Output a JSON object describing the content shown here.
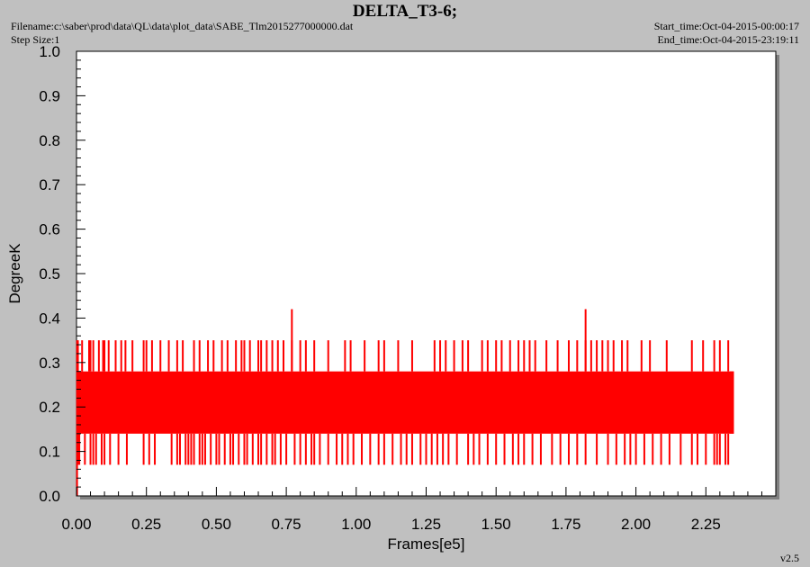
{
  "header": {
    "title": "DELTA_T3-6;",
    "filename": "Filename:c:\\saber\\prod\\data\\QL\\data\\plot_data\\SABE_Tlm2015277000000.dat",
    "step_size": "Step Size:1",
    "start_time": "Start_time:Oct-04-2015-00:00:17",
    "end_time": "End_time:Oct-04-2015-23:19:11",
    "version": "v2.5"
  },
  "colors": {
    "plot_bg": "#ffffff",
    "page_bg": "#c0c0c0",
    "series": "#ff0000"
  },
  "chart_data": {
    "type": "line",
    "title": "DELTA_T3-6;",
    "xlabel": "Frames[e5]",
    "ylabel": "DegreeK",
    "xlim": [
      0,
      2.5
    ],
    "ylim": [
      0,
      1.0
    ],
    "x_ticks": [
      "0.00",
      "0.25",
      "0.50",
      "0.75",
      "1.00",
      "1.25",
      "1.50",
      "1.75",
      "2.00",
      "2.25"
    ],
    "y_ticks": [
      "0.0",
      "0.1",
      "0.2",
      "0.3",
      "0.4",
      "0.5",
      "0.6",
      "0.7",
      "0.8",
      "0.9",
      "1.0"
    ],
    "grid": false,
    "series": [
      {
        "x_range": [
          0,
          2.35
        ],
        "base_band": [
          0.14,
          0.28
        ],
        "max": 0.42,
        "min": 0.07,
        "upper_spikes_x": [
          0.005,
          0.02,
          0.045,
          0.05,
          0.06,
          0.08,
          0.095,
          0.1,
          0.115,
          0.14,
          0.16,
          0.175,
          0.2,
          0.24,
          0.25,
          0.27,
          0.3,
          0.33,
          0.36,
          0.38,
          0.42,
          0.44,
          0.47,
          0.49,
          0.52,
          0.54,
          0.57,
          0.59,
          0.6,
          0.62,
          0.65,
          0.66,
          0.68,
          0.7,
          0.72,
          0.74,
          0.77,
          0.8,
          0.82,
          0.85,
          0.9,
          0.96,
          0.98,
          1.03,
          1.08,
          1.1,
          1.15,
          1.2,
          1.28,
          1.3,
          1.32,
          1.35,
          1.38,
          1.4,
          1.45,
          1.47,
          1.5,
          1.52,
          1.55,
          1.58,
          1.6,
          1.62,
          1.64,
          1.68,
          1.72,
          1.76,
          1.79,
          1.82,
          1.84,
          1.86,
          1.88,
          1.9,
          1.92,
          1.95,
          1.97,
          2.02,
          2.05,
          2.11,
          2.2,
          2.24,
          2.28,
          2.3,
          2.33
        ],
        "high_spikes_x": [
          0.77,
          1.82
        ],
        "lower_spikes_x": [
          0.005,
          0.01,
          0.03,
          0.05,
          0.06,
          0.07,
          0.09,
          0.1,
          0.12,
          0.15,
          0.18,
          0.24,
          0.26,
          0.28,
          0.34,
          0.36,
          0.37,
          0.39,
          0.4,
          0.41,
          0.42,
          0.44,
          0.45,
          0.46,
          0.48,
          0.5,
          0.51,
          0.53,
          0.55,
          0.56,
          0.58,
          0.6,
          0.61,
          0.63,
          0.65,
          0.66,
          0.68,
          0.7,
          0.71,
          0.73,
          0.75,
          0.78,
          0.8,
          0.82,
          0.84,
          0.85,
          0.87,
          0.9,
          0.93,
          0.95,
          0.97,
          0.99,
          1.02,
          1.05,
          1.08,
          1.1,
          1.13,
          1.16,
          1.18,
          1.2,
          1.23,
          1.25,
          1.27,
          1.29,
          1.31,
          1.33,
          1.36,
          1.4,
          1.42,
          1.44,
          1.47,
          1.5,
          1.53,
          1.56,
          1.58,
          1.6,
          1.63,
          1.66,
          1.7,
          1.73,
          1.76,
          1.79,
          1.82,
          1.86,
          1.9,
          1.93,
          1.96,
          1.98,
          2.0,
          2.03,
          2.06,
          2.09,
          2.12,
          2.16,
          2.2,
          2.22,
          2.25,
          2.28,
          2.29,
          2.3,
          2.32,
          2.33
        ]
      }
    ]
  }
}
